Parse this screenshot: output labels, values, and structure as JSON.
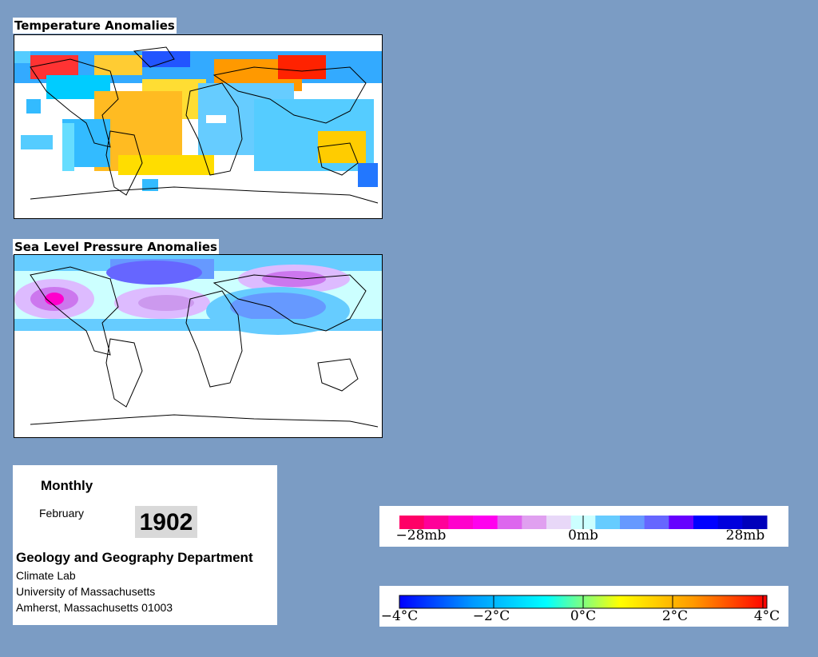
{
  "temperature_map": {
    "title": "Temperature Anomalies"
  },
  "pressure_map": {
    "title": "Sea Level Pressure Anomalies"
  },
  "info": {
    "frequency": "Monthly",
    "month": "February",
    "year": "1902",
    "department": "Geology and Geography Department",
    "lab": "Climate Lab",
    "university": "University of Massachusetts",
    "address": "Amherst, Massachusetts 01003"
  },
  "pressure_legend": {
    "labels": [
      "−28mb",
      "0mb",
      "28mb"
    ],
    "colors": [
      "#ff0066",
      "#ff0099",
      "#ff00cc",
      "#ff00ee",
      "#dd66ee",
      "#e0a0f0",
      "#e8d8f8",
      "#ccffff",
      "#66ccff",
      "#6699ff",
      "#6666ff",
      "#6600ff",
      "#0000ff",
      "#0000dd",
      "#0000bb"
    ]
  },
  "temperature_legend": {
    "labels": [
      "−4°C",
      "−2°C",
      "0°C",
      "2°C",
      "4°C"
    ],
    "gradient": [
      "#0000ff",
      "#0099ff",
      "#00ffff",
      "#ffff00",
      "#ff9900",
      "#ff0000"
    ]
  }
}
